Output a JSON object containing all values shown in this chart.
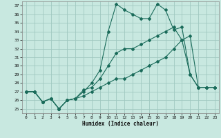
{
  "title": "",
  "xlabel": "Humidex (Indice chaleur)",
  "xlim": [
    -0.5,
    23.5
  ],
  "ylim": [
    24.5,
    37.5
  ],
  "xticks": [
    0,
    1,
    2,
    3,
    4,
    5,
    6,
    7,
    8,
    9,
    10,
    11,
    12,
    13,
    14,
    15,
    16,
    17,
    18,
    19,
    20,
    21,
    22,
    23
  ],
  "yticks": [
    25,
    26,
    27,
    28,
    29,
    30,
    31,
    32,
    33,
    34,
    35,
    36,
    37
  ],
  "bg_color": "#c8e8e0",
  "grid_color": "#a0c8c0",
  "line_color": "#1a6b5a",
  "line1_x": [
    0,
    1,
    2,
    3,
    4,
    5,
    6,
    7,
    8,
    9,
    10,
    11,
    12,
    13,
    14,
    15,
    16,
    17,
    18,
    19,
    20,
    21,
    22,
    23
  ],
  "line1_y": [
    27,
    27,
    25.8,
    26.2,
    25.0,
    26.0,
    26.2,
    27.0,
    28.0,
    29.5,
    34.0,
    37.2,
    36.5,
    36.0,
    35.5,
    35.5,
    37.2,
    36.5,
    34.2,
    34.5,
    29.0,
    27.5,
    27.5,
    27.5
  ],
  "line2_x": [
    0,
    1,
    2,
    3,
    4,
    5,
    6,
    7,
    8,
    9,
    10,
    11,
    12,
    13,
    14,
    15,
    16,
    17,
    18,
    19,
    20,
    21,
    22,
    23
  ],
  "line2_y": [
    27,
    27,
    25.8,
    26.2,
    25.0,
    26.0,
    26.2,
    27.2,
    27.5,
    28.5,
    30.0,
    31.5,
    32.0,
    32.0,
    32.5,
    33.0,
    33.5,
    34.0,
    34.5,
    33.0,
    29.0,
    27.5,
    27.5,
    27.5
  ],
  "line3_x": [
    0,
    1,
    2,
    3,
    4,
    5,
    6,
    7,
    8,
    9,
    10,
    11,
    12,
    13,
    14,
    15,
    16,
    17,
    18,
    19,
    20,
    21,
    22,
    23
  ],
  "line3_y": [
    27,
    27,
    25.8,
    26.2,
    25.0,
    26.0,
    26.2,
    26.5,
    27.0,
    27.5,
    28.0,
    28.5,
    28.5,
    29.0,
    29.5,
    30.0,
    30.5,
    31.0,
    32.0,
    33.0,
    33.5,
    27.5,
    27.5,
    27.5
  ]
}
